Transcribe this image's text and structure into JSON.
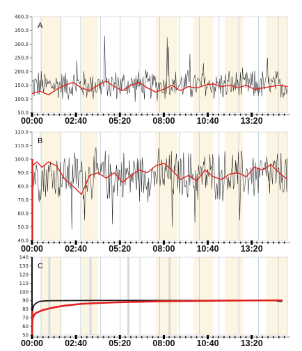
{
  "chart_data": [
    {
      "panel_label": "A",
      "type": "line",
      "ylim": [
        50,
        400
      ],
      "yticks": [
        "400.0",
        "350.0",
        "300.0",
        "250.0",
        "200.0",
        "150.0",
        "100.0",
        "50.0"
      ],
      "xlim": [
        0,
        15.5
      ],
      "xtick_labels": [
        "00:00",
        "02:40",
        "05:20",
        "08:00",
        "10:40",
        "13:20"
      ],
      "xtick_hours": [
        0,
        2.667,
        5.333,
        8.0,
        10.667,
        13.333
      ],
      "grid": "vertical",
      "shaded_hour_bands": [
        [
          0.55,
          1.75
        ],
        [
          3.0,
          4.0
        ],
        [
          7.5,
          8.8
        ],
        [
          9.8,
          11.0
        ],
        [
          11.7,
          12.8
        ],
        [
          14.2,
          15.5
        ]
      ],
      "series": [
        {
          "role": "raw",
          "color": "#222222",
          "base": 150,
          "noise": 42,
          "min": 85,
          "max": 335,
          "spikes": [
            [
              4.4,
              330
            ],
            [
              8.2,
              325
            ],
            [
              8.3,
              290
            ],
            [
              9.6,
              265
            ],
            [
              10.4,
              230
            ],
            [
              14.3,
              250
            ],
            [
              2.7,
              240
            ]
          ]
        },
        {
          "role": "smoothed",
          "color": "#e02020",
          "x": [
            0,
            0.5,
            1.0,
            1.5,
            2.0,
            2.5,
            3.0,
            3.5,
            4.0,
            4.5,
            5.0,
            5.5,
            6.0,
            6.5,
            7.0,
            7.5,
            8.0,
            8.5,
            9.0,
            9.5,
            10.0,
            10.5,
            11.0,
            11.5,
            12.0,
            12.5,
            13.0,
            13.5,
            14.0,
            14.5,
            15.0,
            15.5
          ],
          "y": [
            120,
            128,
            115,
            135,
            150,
            160,
            140,
            130,
            150,
            165,
            145,
            130,
            150,
            160,
            140,
            125,
            135,
            150,
            130,
            145,
            140,
            150,
            155,
            145,
            150,
            140,
            150,
            135,
            140,
            145,
            150,
            145
          ]
        }
      ]
    },
    {
      "panel_label": "B",
      "type": "line",
      "ylim": [
        40,
        120
      ],
      "yticks": [
        "120.0",
        "110.0",
        "100.0",
        "90.0",
        "80.0",
        "70.0",
        "60.0",
        "50.0",
        "40.0"
      ],
      "xlim": [
        0,
        15.5
      ],
      "xtick_labels": [
        "00:00",
        "02:40",
        "05:20",
        "08:00",
        "10:40",
        "13:20"
      ],
      "xtick_hours": [
        0,
        2.667,
        5.333,
        8.0,
        10.667,
        13.333
      ],
      "grid": "vertical",
      "shaded_hour_bands": [
        [
          0.55,
          1.75
        ],
        [
          3.0,
          4.0
        ],
        [
          7.5,
          8.8
        ],
        [
          9.8,
          11.0
        ],
        [
          11.7,
          12.8
        ],
        [
          14.2,
          15.5
        ]
      ],
      "series": [
        {
          "role": "raw",
          "color": "#222222",
          "base": 88,
          "noise": 14,
          "min": 45,
          "max": 118,
          "spikes": [
            [
              2.4,
              48
            ],
            [
              4.9,
              52
            ],
            [
              8.5,
              50
            ],
            [
              9.9,
              53
            ],
            [
              12.6,
              55
            ],
            [
              3.2,
              55
            ]
          ]
        },
        {
          "role": "smoothed",
          "color": "#e02020",
          "x": [
            0,
            0.3,
            0.6,
            1.0,
            1.5,
            2.0,
            2.5,
            3.0,
            3.5,
            4.0,
            4.5,
            5.0,
            5.5,
            6.0,
            6.5,
            7.0,
            7.5,
            8.0,
            8.5,
            9.0,
            9.5,
            10.0,
            10.5,
            11.0,
            11.5,
            12.0,
            12.5,
            13.0,
            13.5,
            14.0,
            14.5,
            15.0,
            15.5
          ],
          "y": [
            95,
            98,
            94,
            98,
            95,
            85,
            80,
            74,
            88,
            90,
            86,
            90,
            83,
            88,
            92,
            90,
            95,
            97,
            92,
            85,
            88,
            84,
            92,
            87,
            85,
            89,
            90,
            87,
            94,
            92,
            96,
            90,
            85
          ]
        },
        {
          "role": "start-marker",
          "color": "#e02020",
          "x": [
            0.02,
            0.02
          ],
          "y": [
            40,
            100
          ]
        }
      ]
    },
    {
      "panel_label": "C",
      "type": "line",
      "ylim": [
        50,
        140
      ],
      "yticks": [
        "140",
        "130",
        "120",
        "110",
        "100",
        "90",
        "80",
        "70",
        "60",
        "50"
      ],
      "xlim": [
        0,
        15.5
      ],
      "xtick_labels": [
        "00:00",
        "02:40",
        "05:20",
        "08:00",
        "10:40",
        "13:20"
      ],
      "xtick_hours": [
        0,
        2.667,
        5.333,
        8.0,
        10.667,
        13.333
      ],
      "grid": "vertical",
      "shaded_hour_bands": [
        [
          0.55,
          1.75
        ],
        [
          3.0,
          4.0
        ],
        [
          7.5,
          8.8
        ],
        [
          9.8,
          11.0
        ],
        [
          11.7,
          12.8
        ],
        [
          14.2,
          15.5
        ]
      ],
      "series": [
        {
          "role": "upper",
          "color": "#111111",
          "x": [
            0,
            0.05,
            0.1,
            0.2,
            0.35,
            0.5,
            0.8,
            1.2,
            2,
            3,
            4,
            5,
            6,
            7,
            8,
            9,
            10,
            11,
            12,
            13,
            14,
            14.7,
            15,
            15.2
          ],
          "y": [
            70,
            80,
            84,
            86,
            88,
            89,
            89.5,
            89.7,
            89.8,
            89.9,
            90,
            90,
            90,
            90,
            90,
            90,
            90,
            90,
            90,
            90,
            90,
            90,
            89,
            89
          ]
        },
        {
          "role": "lower",
          "color": "#e02020",
          "x": [
            0,
            0.05,
            0.15,
            0.3,
            0.6,
            1.0,
            1.5,
            2,
            3,
            4,
            5,
            6,
            7,
            8,
            9,
            10,
            11,
            12,
            13,
            14,
            15,
            15.2
          ],
          "y": [
            62,
            70,
            74,
            76,
            78.5,
            80.5,
            82.5,
            84,
            86,
            87,
            87.7,
            88.2,
            88.6,
            89,
            89.2,
            89.4,
            89.6,
            89.8,
            89.9,
            90,
            90,
            90
          ]
        },
        {
          "role": "start-burst",
          "color": "#e02020",
          "x": [
            0.02,
            0.02
          ],
          "y": [
            50,
            78
          ]
        }
      ]
    }
  ]
}
